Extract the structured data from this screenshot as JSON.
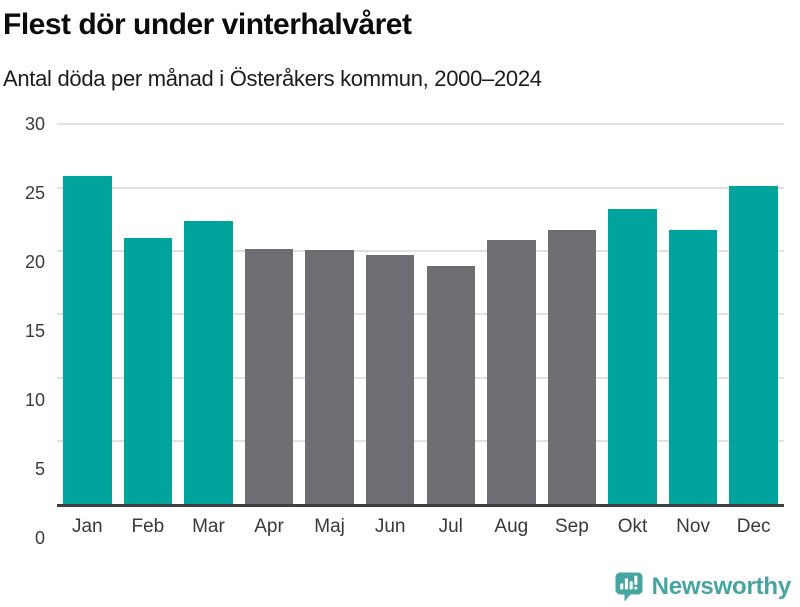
{
  "header": {
    "title": "Flest dör under vinterhalvåret",
    "subtitle": "Antal döda per månad i Österåkers kommun, 2000–2024"
  },
  "chart_data": {
    "type": "bar",
    "title": "Flest dör under vinterhalvåret",
    "subtitle": "Antal döda per månad i Österåkers kommun, 2000–2024",
    "categories": [
      "Jan",
      "Feb",
      "Mar",
      "Apr",
      "Maj",
      "Jun",
      "Jul",
      "Aug",
      "Sep",
      "Okt",
      "Nov",
      "Dec"
    ],
    "values": [
      25.9,
      21.0,
      22.4,
      20.2,
      20.1,
      19.7,
      18.8,
      20.9,
      21.7,
      23.3,
      21.7,
      25.1
    ],
    "bar_colors": [
      "teal",
      "teal",
      "teal",
      "gray",
      "gray",
      "gray",
      "gray",
      "gray",
      "gray",
      "teal",
      "teal",
      "teal"
    ],
    "colors": {
      "teal": "#00a49c",
      "gray": "#6d6d73"
    },
    "xlabel": "",
    "ylabel": "",
    "ylim": [
      0,
      30
    ],
    "yticks": [
      0,
      5,
      10,
      15,
      20,
      25,
      30
    ],
    "grid": true,
    "legend": false,
    "gridline_color": "#e1e1e1",
    "axis_line_color": "#3e3e42"
  },
  "footer": {
    "brand": "Newsworthy",
    "brand_color": "#46a5a1",
    "logo_icon": "bar-chart-speech-bubble-icon"
  }
}
